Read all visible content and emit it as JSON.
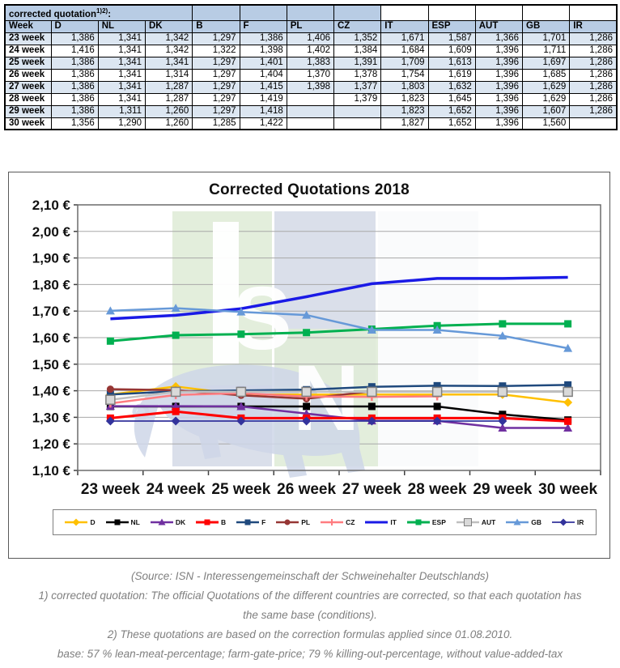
{
  "table": {
    "caption": "corrected quotation",
    "caption_sup": "1)2)",
    "caption_colon": ":",
    "columns": [
      "Week",
      "D",
      "NL",
      "DK",
      "B",
      "F",
      "PL",
      "CZ",
      "IT",
      "ESP",
      "AUT",
      "GB",
      "IR"
    ],
    "rows": [
      {
        "label": "23 week",
        "values": [
          "1,386",
          "1,341",
          "1,342",
          "1,297",
          "1,386",
          "1,406",
          "1,352",
          "1,671",
          "1,587",
          "1,366",
          "1,701",
          "1,286"
        ]
      },
      {
        "label": "24 week",
        "values": [
          "1,416",
          "1,341",
          "1,342",
          "1,322",
          "1,398",
          "1,402",
          "1,384",
          "1,684",
          "1,609",
          "1,396",
          "1,711",
          "1,286"
        ]
      },
      {
        "label": "25 week",
        "values": [
          "1,386",
          "1,341",
          "1,341",
          "1,297",
          "1,401",
          "1,383",
          "1,391",
          "1,709",
          "1,613",
          "1,396",
          "1,697",
          "1,286"
        ]
      },
      {
        "label": "26 week",
        "values": [
          "1,386",
          "1,341",
          "1,314",
          "1,297",
          "1,404",
          "1,370",
          "1,378",
          "1,754",
          "1,619",
          "1,396",
          "1,685",
          "1,286"
        ]
      },
      {
        "label": "27 week",
        "values": [
          "1,386",
          "1,341",
          "1,287",
          "1,297",
          "1,415",
          "1,398",
          "1,377",
          "1,803",
          "1,632",
          "1,396",
          "1,629",
          "1,286"
        ]
      },
      {
        "label": "28 week",
        "values": [
          "1,386",
          "1,341",
          "1,287",
          "1,297",
          "1,419",
          null,
          "1,379",
          "1,823",
          "1,645",
          "1,396",
          "1,629",
          "1,286"
        ]
      },
      {
        "label": "29 week",
        "values": [
          "1,386",
          "1,311",
          "1,260",
          "1,297",
          "1,418",
          null,
          null,
          "1,823",
          "1,652",
          "1,396",
          "1,607",
          "1,286"
        ]
      },
      {
        "label": "30 week",
        "values": [
          "1,356",
          "1,290",
          "1,260",
          "1,285",
          "1,422",
          null,
          null,
          "1,827",
          "1,652",
          "1,396",
          "1,560",
          null
        ]
      }
    ]
  },
  "chart_data": {
    "type": "line",
    "title": "Corrected Quotations 2018",
    "categories": [
      "23 week",
      "24 week",
      "25 week",
      "26 week",
      "27 week",
      "28 week",
      "29 week",
      "30 week"
    ],
    "ylim": [
      1.1,
      2.1
    ],
    "y_step": 0.1,
    "y_ticks": [
      "2,10 €",
      "2,00 €",
      "1,90 €",
      "1,80 €",
      "1,70 €",
      "1,60 €",
      "1,50 €",
      "1,40 €",
      "1,30 €",
      "1,20 €",
      "1,10 €"
    ],
    "grid": "horizontal",
    "legend_position": "bottom",
    "series": [
      {
        "name": "D",
        "color": "#FFC000",
        "marker": "diamond",
        "width": 2.5,
        "values": [
          1.386,
          1.416,
          1.386,
          1.386,
          1.386,
          1.386,
          1.386,
          1.356
        ]
      },
      {
        "name": "NL",
        "color": "#000000",
        "marker": "square",
        "width": 2.5,
        "values": [
          1.341,
          1.341,
          1.341,
          1.341,
          1.341,
          1.341,
          1.311,
          1.29
        ]
      },
      {
        "name": "DK",
        "color": "#7030A0",
        "marker": "triangle",
        "width": 2.5,
        "values": [
          1.342,
          1.342,
          1.341,
          1.314,
          1.287,
          1.287,
          1.26,
          1.26
        ]
      },
      {
        "name": "B",
        "color": "#FF0000",
        "marker": "square",
        "width": 3,
        "values": [
          1.297,
          1.322,
          1.297,
          1.297,
          1.297,
          1.297,
          1.297,
          1.285
        ]
      },
      {
        "name": "F",
        "color": "#1F497D",
        "marker": "square",
        "width": 2.5,
        "values": [
          1.386,
          1.398,
          1.401,
          1.404,
          1.415,
          1.419,
          1.418,
          1.422
        ]
      },
      {
        "name": "PL",
        "color": "#963634",
        "marker": "circle",
        "width": 2.5,
        "values": [
          1.406,
          1.402,
          1.383,
          1.37,
          1.398,
          null,
          null,
          null
        ]
      },
      {
        "name": "CZ",
        "color": "#FF7C80",
        "marker": "plus",
        "width": 2.5,
        "values": [
          1.352,
          1.384,
          1.391,
          1.378,
          1.377,
          1.379,
          null,
          null
        ]
      },
      {
        "name": "IT",
        "color": "#1A1AE6",
        "marker": "none",
        "width": 3.5,
        "values": [
          1.671,
          1.684,
          1.709,
          1.754,
          1.803,
          1.823,
          1.823,
          1.827
        ]
      },
      {
        "name": "ESP",
        "color": "#00B050",
        "marker": "square",
        "width": 3,
        "values": [
          1.587,
          1.609,
          1.613,
          1.619,
          1.632,
          1.645,
          1.652,
          1.652
        ]
      },
      {
        "name": "AUT",
        "color": "#BFBFBF",
        "marker": "square-hollow",
        "width": 2.5,
        "values": [
          1.366,
          1.396,
          1.396,
          1.396,
          1.396,
          1.396,
          1.396,
          1.396
        ]
      },
      {
        "name": "GB",
        "color": "#6699D8",
        "marker": "triangle",
        "width": 2.5,
        "values": [
          1.701,
          1.711,
          1.697,
          1.685,
          1.629,
          1.629,
          1.607,
          1.56
        ]
      },
      {
        "name": "IR",
        "color": "#33339C",
        "marker": "diamond",
        "width": 1.8,
        "values": [
          1.286,
          1.286,
          1.286,
          1.286,
          1.286,
          1.286,
          1.286,
          null
        ]
      }
    ]
  },
  "watermark": {
    "name": "isn-logo",
    "letters": [
      "I",
      "S",
      "N"
    ],
    "green": "#E0ECD8",
    "bluegray": "#D6DBE8",
    "pig_color": "#CED6E7"
  },
  "colors": {
    "header_blue": "#B8CCE4",
    "stripe_blue": "#DCE6F1",
    "grid": "#A8A8A8",
    "axis": "#6B6B6B",
    "footer_gray": "#7F7F7F"
  },
  "footer": {
    "lines": [
      "(Source: ISN - Interessengemeinschaft der Schweinehalter Deutschlands)",
      "1) corrected quotation: The official Quotations of the different countries are corrected, so that each quotation has",
      "the same base (conditions).",
      "2) These quotations are based on the correction formulas applied since 01.08.2010.",
      "base: 57 % lean-meat-percentage; farm-gate-price; 79 % killing-out-percentage, without value-added-tax"
    ]
  }
}
